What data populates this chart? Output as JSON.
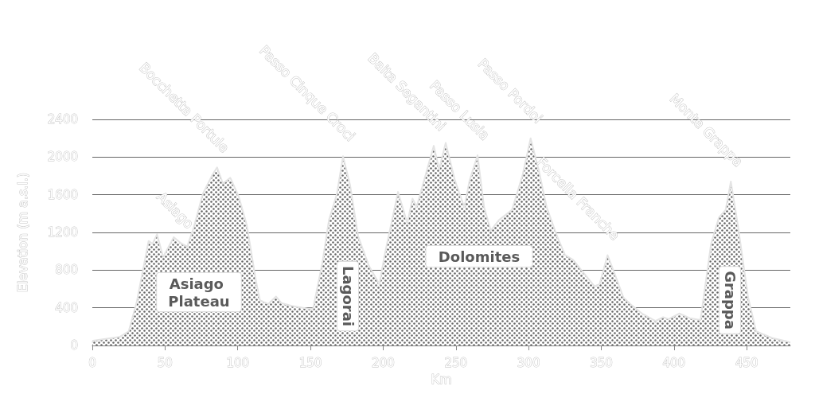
{
  "chart_data": {
    "type": "area",
    "xlabel": "Km",
    "ylabel": "Elevation (m a.s.l.)",
    "xlim": [
      0,
      480
    ],
    "xticks": [
      0,
      50,
      100,
      150,
      200,
      250,
      300,
      350,
      400,
      450
    ],
    "ylim": [
      0,
      2400
    ],
    "yticks": [
      0,
      400,
      800,
      1200,
      1600,
      2000,
      2400
    ],
    "grid": "y",
    "marker": "none",
    "series": [
      {
        "color": "#666666",
        "x": [
          0,
          0.4,
          18.6,
          25,
          30.5,
          38.7,
          41.4,
          44.5,
          48.7,
          56,
          61.5,
          65.2,
          69.7,
          76,
          82.5,
          85.8,
          89.8,
          94.9,
          100.7,
          106.2,
          112.6,
          115.3,
          120.8,
          126.3,
          130,
          137.2,
          148.2,
          151.8,
          158.2,
          162.7,
          168.2,
          172.4,
          177.3,
          182.8,
          190.1,
          197.4,
          201,
          210.2,
          216.6,
          220.2,
          223,
          234.8,
          238.5,
          243,
          249.4,
          255.8,
          259.4,
          264.9,
          269.4,
          274,
          279.5,
          288.6,
          295.9,
          301.4,
          306.9,
          312.4,
          319.6,
          325.1,
          330.6,
          337.9,
          345.2,
          348.8,
          354.3,
          359.7,
          365.2,
          370.7,
          378,
          387.2,
          392.6,
          396.3,
          403.6,
          410.9,
          418.2,
          425.5,
          430.9,
          435.5,
          439.1,
          443.7,
          451,
          456.5,
          467.4,
          478.4,
          480
        ],
        "values": [
          30,
          50,
          90,
          150,
          460,
          1110,
          1080,
          1180,
          940,
          1150,
          1080,
          1050,
          1250,
          1610,
          1810,
          1890,
          1720,
          1780,
          1580,
          1280,
          680,
          480,
          440,
          520,
          450,
          420,
          390,
          390,
          880,
          1330,
          1610,
          2010,
          1700,
          1160,
          850,
          650,
          960,
          1630,
          1300,
          1560,
          1470,
          2120,
          1870,
          2150,
          1750,
          1470,
          1750,
          2020,
          1470,
          1220,
          1330,
          1440,
          1810,
          2200,
          1870,
          1470,
          1160,
          960,
          910,
          770,
          630,
          650,
          960,
          740,
          510,
          430,
          340,
          260,
          300,
          280,
          340,
          290,
          270,
          1080,
          1360,
          1440,
          1740,
          1300,
          510,
          150,
          80,
          40,
          30
        ]
      }
    ],
    "annotations": [
      {
        "text": "Asiago",
        "x": 61.5,
        "y": 1080
      },
      {
        "text": "Bocchetta Portule",
        "x": 85.8,
        "y": 1890
      },
      {
        "text": "Passo Cinque Croci",
        "x": 172.4,
        "y": 2010
      },
      {
        "text": "Baita Segantini",
        "x": 234.8,
        "y": 2120
      },
      {
        "text": "Passo Lusia",
        "x": 264.9,
        "y": 2020
      },
      {
        "text": "Passo Pordoi",
        "x": 301.4,
        "y": 2200
      },
      {
        "text": "Forcella Franche",
        "x": 354.3,
        "y": 960
      },
      {
        "text": "Monte Grappa",
        "x": 439.1,
        "y": 1740
      },
      "Asiago Plateau",
      "Lagorai",
      "Dolomites",
      "Grappa"
    ]
  }
}
